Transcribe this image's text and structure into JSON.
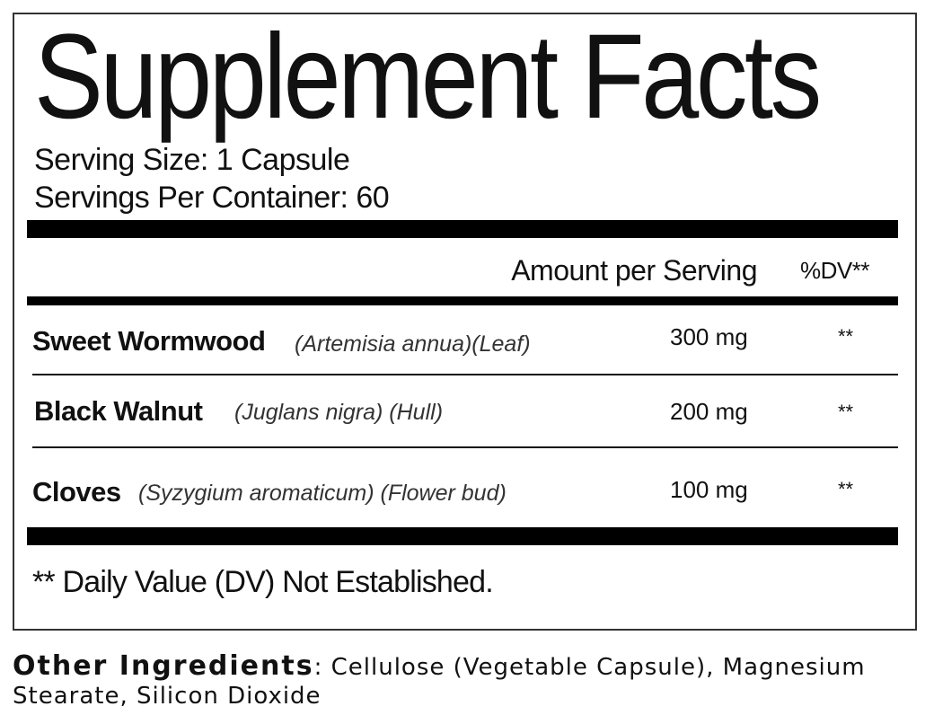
{
  "title": "Supplement Facts",
  "serving_size": "Serving Size: 1 Capsule",
  "servings_per_container": "Servings Per Container: 60",
  "header": {
    "amount": "Amount per Serving",
    "dv": "%DV**"
  },
  "ingredients": [
    {
      "name": "Sweet Wormwood",
      "latin": "(Artemisia annua)(Leaf)",
      "amount": "300 mg",
      "dv": "**"
    },
    {
      "name": "Black Walnut",
      "latin": "(Juglans nigra) (Hull)",
      "amount": "200 mg",
      "dv": "**"
    },
    {
      "name": "Cloves",
      "latin": "(Syzygium aromaticum) (Flower bud)",
      "amount": "100 mg",
      "dv": "**"
    }
  ],
  "footnote": "** Daily Value (DV) Not Established.",
  "other_ingredients": {
    "label": "Other Ingredients",
    "text": ": Cellulose (Vegetable Capsule), Magnesium Stearate, Silicon Dioxide"
  }
}
